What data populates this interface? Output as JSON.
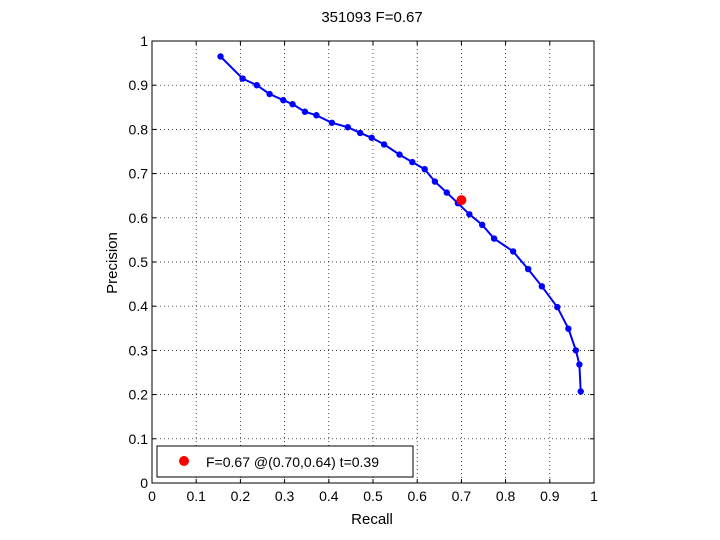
{
  "chart_data": {
    "type": "line",
    "title": "351093 F=0.67",
    "xlabel": "Recall",
    "ylabel": "Precision",
    "xlim": [
      0,
      1
    ],
    "ylim": [
      0,
      1
    ],
    "xticks": [
      "0",
      "0.1",
      "0.2",
      "0.3",
      "0.4",
      "0.5",
      "0.6",
      "0.7",
      "0.8",
      "0.9",
      "1"
    ],
    "yticks": [
      "0",
      "0.1",
      "0.2",
      "0.3",
      "0.4",
      "0.5",
      "0.6",
      "0.7",
      "0.8",
      "0.9",
      "1"
    ],
    "grid": true,
    "legend_position": "bottom-left",
    "series": [
      {
        "color": "#0000ff",
        "x": [
          0.155,
          0.205,
          0.237,
          0.266,
          0.297,
          0.318,
          0.346,
          0.372,
          0.407,
          0.443,
          0.471,
          0.497,
          0.525,
          0.56,
          0.589,
          0.617,
          0.64,
          0.667,
          0.692,
          0.718,
          0.747,
          0.774,
          0.817,
          0.851,
          0.882,
          0.917,
          0.942,
          0.959,
          0.967,
          0.97
        ],
        "y": [
          0.965,
          0.915,
          0.9,
          0.88,
          0.866,
          0.857,
          0.84,
          0.832,
          0.815,
          0.805,
          0.792,
          0.781,
          0.766,
          0.743,
          0.726,
          0.71,
          0.682,
          0.657,
          0.633,
          0.608,
          0.584,
          0.553,
          0.524,
          0.484,
          0.445,
          0.398,
          0.349,
          0.3,
          0.268,
          0.207
        ]
      }
    ],
    "highlight_point": {
      "x": 0.7,
      "y": 0.64,
      "color": "#ff0000",
      "legend_label": "F=0.67 @(0.70,0.64) t=0.39"
    }
  }
}
